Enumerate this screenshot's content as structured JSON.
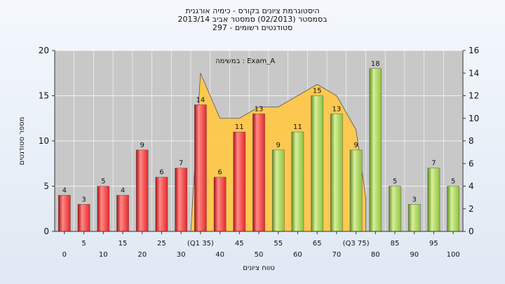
{
  "title_lines": [
    "היסטוגרמת ציונים בקורס - כימיה אורגנית",
    "בסמסטר  (02/2013)  סמסטר אביב 2013/14",
    "סטודנטים רשומים - 297"
  ],
  "chart_data": {
    "type": "bar",
    "annotation": "במשימה : Exam_A",
    "xlabel": "טווח ציונים",
    "ylabel": "מספר סטודנטים",
    "ylim": [
      0,
      20
    ],
    "y_ticks": [
      0,
      5,
      10,
      15,
      20
    ],
    "y2lim": [
      0,
      16
    ],
    "y2_ticks": [
      0,
      2,
      4,
      6,
      8,
      10,
      12,
      14,
      16
    ],
    "grid": true,
    "categories": [
      "0",
      "5",
      "10",
      "15",
      "20",
      "25",
      "30",
      "(Q1 35)",
      "40",
      "45",
      "50",
      "55",
      "60",
      "65",
      "70",
      "(Q3 75)",
      "80",
      "85",
      "90",
      "95",
      "100"
    ],
    "values": [
      4,
      3,
      5,
      4,
      9,
      6,
      7,
      14,
      6,
      11,
      13,
      9,
      11,
      15,
      13,
      9,
      18,
      5,
      3,
      7,
      5
    ],
    "bar_colors": [
      "red",
      "red",
      "red",
      "red",
      "red",
      "red",
      "red",
      "red",
      "red",
      "red",
      "red",
      "green",
      "green",
      "green",
      "green",
      "green",
      "green",
      "green",
      "green",
      "green",
      "green"
    ],
    "area": {
      "x": [
        "30",
        "(Q1 35)",
        "40",
        "45",
        "50",
        "55",
        "60",
        "65",
        "70",
        "(Q3 75)",
        "80"
      ],
      "values": [
        0,
        14,
        10,
        10,
        11,
        11,
        12,
        13,
        12,
        9,
        3
      ]
    },
    "colors": {
      "red": "#e8262a",
      "green": "#8fc23e",
      "area": "#ffc84a",
      "plot_bg": "#c8c8c8",
      "grid": "#ffffff"
    }
  }
}
